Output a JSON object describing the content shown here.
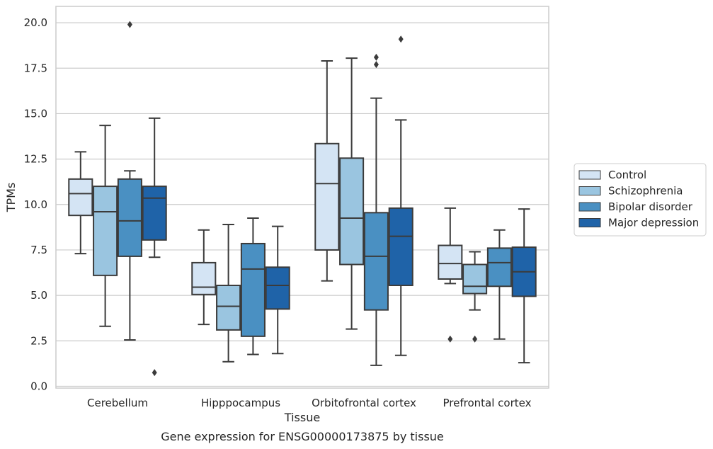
{
  "chart_data": {
    "type": "boxplot",
    "title": "",
    "caption": "Gene expression for ENSG00000173875 by tissue",
    "xlabel": "Tissue",
    "ylabel": "TPMs",
    "ylim": [
      -0.1,
      20.9
    ],
    "yticks": [
      0.0,
      2.5,
      5.0,
      7.5,
      10.0,
      12.5,
      15.0,
      17.5,
      20.0
    ],
    "ytick_labels": [
      "0.0",
      "2.5",
      "5.0",
      "7.5",
      "10.0",
      "12.5",
      "15.0",
      "17.5",
      "20.0"
    ],
    "grid": "horizontal",
    "legend_position": "outside-right",
    "categories": [
      "Cerebellum",
      "Hipppocampus",
      "Orbitofrontal cortex",
      "Prefrontal cortex"
    ],
    "series": [
      {
        "name": "Control",
        "color": "#d4e4f4",
        "boxes": [
          {
            "whislo": 7.3,
            "q1": 9.4,
            "med": 10.6,
            "q3": 11.4,
            "whishi": 12.9,
            "fliers": []
          },
          {
            "whislo": 3.4,
            "q1": 5.05,
            "med": 5.45,
            "q3": 6.8,
            "whishi": 8.6,
            "fliers": []
          },
          {
            "whislo": 5.8,
            "q1": 7.5,
            "med": 11.15,
            "q3": 13.35,
            "whishi": 17.9,
            "fliers": []
          },
          {
            "whislo": 5.65,
            "q1": 5.9,
            "med": 6.75,
            "q3": 7.75,
            "whishi": 9.8,
            "fliers": [
              2.6
            ]
          }
        ]
      },
      {
        "name": "Schizophrenia",
        "color": "#9ac5e0",
        "boxes": [
          {
            "whislo": 3.3,
            "q1": 6.1,
            "med": 9.6,
            "q3": 11.0,
            "whishi": 14.35,
            "fliers": []
          },
          {
            "whislo": 1.35,
            "q1": 3.1,
            "med": 4.4,
            "q3": 5.55,
            "whishi": 8.9,
            "fliers": []
          },
          {
            "whislo": 3.15,
            "q1": 6.7,
            "med": 9.25,
            "q3": 12.55,
            "whishi": 18.05,
            "fliers": []
          },
          {
            "whislo": 4.2,
            "q1": 5.1,
            "med": 5.5,
            "q3": 6.7,
            "whishi": 7.4,
            "fliers": [
              2.6
            ]
          }
        ]
      },
      {
        "name": "Bipolar disorder",
        "color": "#4a90c2",
        "boxes": [
          {
            "whislo": 2.55,
            "q1": 7.15,
            "med": 9.1,
            "q3": 11.4,
            "whishi": 11.85,
            "fliers": [
              19.9
            ]
          },
          {
            "whislo": 1.75,
            "q1": 2.75,
            "med": 6.45,
            "q3": 7.85,
            "whishi": 9.25,
            "fliers": []
          },
          {
            "whislo": 1.15,
            "q1": 4.2,
            "med": 7.15,
            "q3": 9.55,
            "whishi": 15.85,
            "fliers": [
              17.7,
              18.1
            ]
          },
          {
            "whislo": 2.6,
            "q1": 5.5,
            "med": 6.8,
            "q3": 7.6,
            "whishi": 8.6,
            "fliers": []
          }
        ]
      },
      {
        "name": "Major depression",
        "color": "#1f63a8",
        "boxes": [
          {
            "whislo": 7.1,
            "q1": 8.05,
            "med": 10.35,
            "q3": 11.0,
            "whishi": 14.75,
            "fliers": [
              0.75
            ]
          },
          {
            "whislo": 1.8,
            "q1": 4.25,
            "med": 5.55,
            "q3": 6.55,
            "whishi": 8.8,
            "fliers": []
          },
          {
            "whislo": 1.7,
            "q1": 5.55,
            "med": 8.25,
            "q3": 9.8,
            "whishi": 14.65,
            "fliers": [
              19.1
            ]
          },
          {
            "whislo": 1.3,
            "q1": 4.95,
            "med": 6.3,
            "q3": 7.65,
            "whishi": 9.75,
            "fliers": []
          }
        ]
      }
    ]
  }
}
